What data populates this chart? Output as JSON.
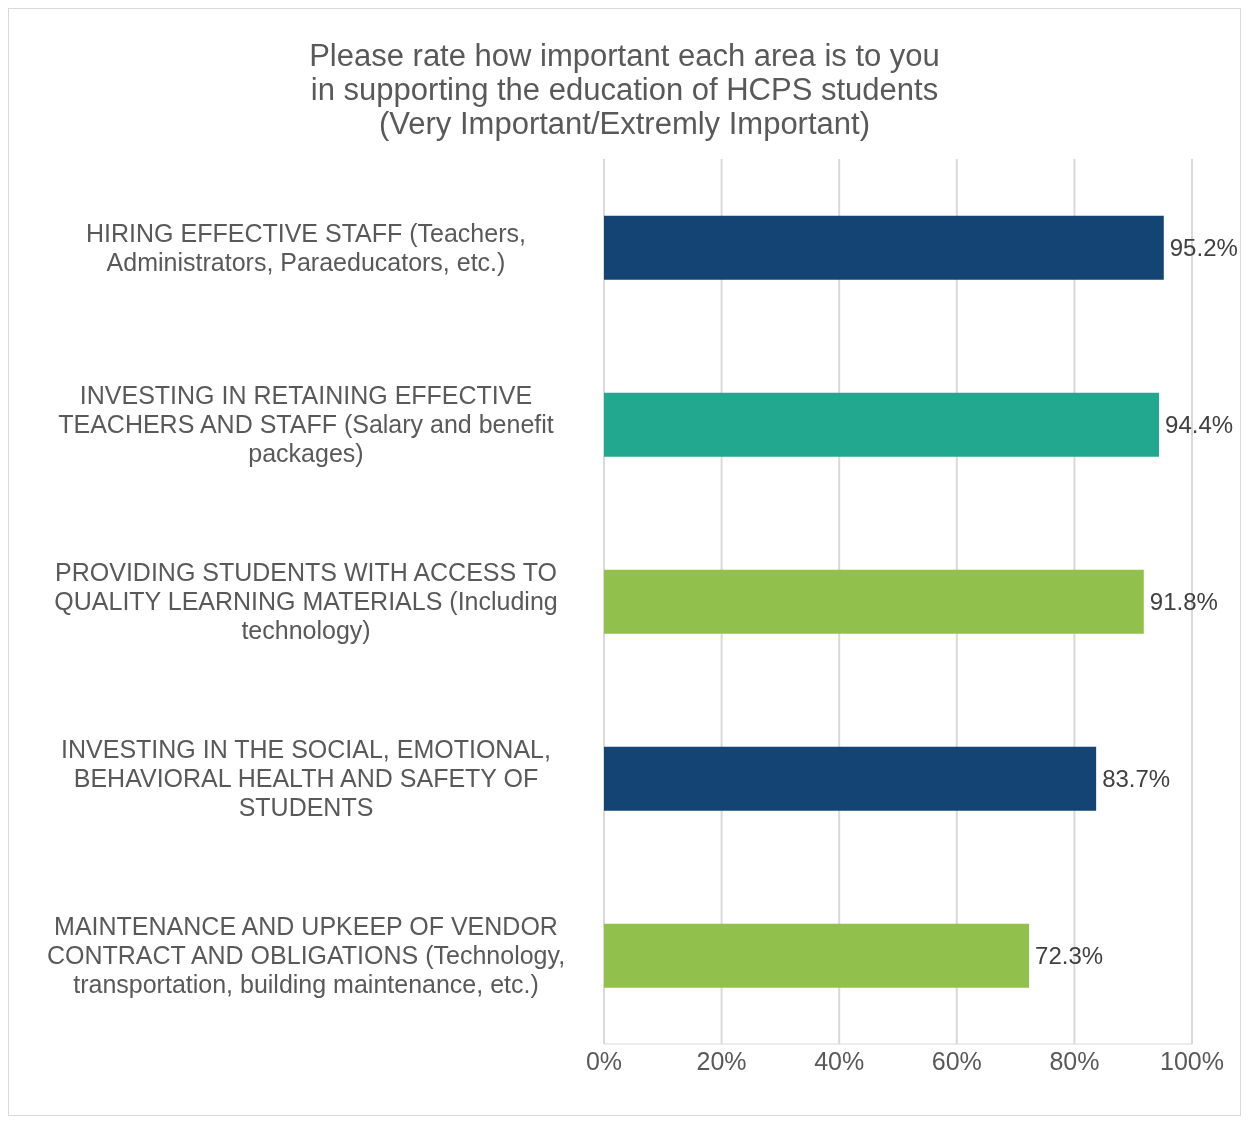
{
  "chart_data": {
    "type": "bar",
    "orientation": "horizontal",
    "title": "Please rate how important each area is to you\nin supporting the education of HCPS students\n(Very Important/Extremly Important)",
    "categories": [
      "HIRING EFFECTIVE STAFF (Teachers, Administrators, Paraeducators, etc.)",
      "INVESTING IN RETAINING EFFECTIVE TEACHERS AND STAFF (Salary and benefit packages)",
      "PROVIDING STUDENTS WITH ACCESS TO QUALITY LEARNING MATERIALS (Including technology)",
      "INVESTING IN THE SOCIAL, EMOTIONAL, BEHAVIORAL HEALTH AND SAFETY OF STUDENTS",
      "MAINTENANCE AND UPKEEP OF VENDOR CONTRACT AND OBLIGATIONS (Technology, transportation, building maintenance, etc.)"
    ],
    "values": [
      95.2,
      94.4,
      91.8,
      83.7,
      72.3
    ],
    "colors": [
      "#134474",
      "#22a88e",
      "#92c04c",
      "#134474",
      "#92c04c"
    ],
    "value_labels": [
      "95.2%",
      "94.4%",
      "91.8%",
      "83.7%",
      "72.3%"
    ],
    "xlim": [
      0,
      100
    ],
    "xticks": [
      {
        "value": 0,
        "label": "0%"
      },
      {
        "value": 20,
        "label": "20%"
      },
      {
        "value": 40,
        "label": "40%"
      },
      {
        "value": 60,
        "label": "60%"
      },
      {
        "value": 80,
        "label": "80%"
      },
      {
        "value": 100,
        "label": "100%"
      }
    ],
    "grid": "x",
    "legend": false
  }
}
